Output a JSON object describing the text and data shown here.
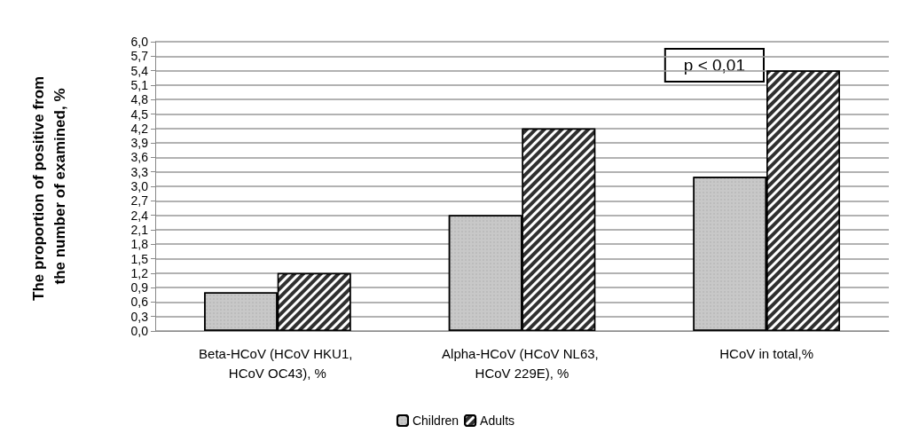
{
  "chart_data": {
    "type": "bar",
    "ylabel": "The proportion of positive from the number of examined, %",
    "categories": [
      "Beta-HCoV (HCoV HKU1, HCoV OC43), %",
      "Alpha-HCoV (HCoV NL63, HCoV 229E), %",
      "HCoV in total,%"
    ],
    "series": [
      {
        "name": "Children",
        "color": "#c8c8c8",
        "values": [
          0.8,
          2.4,
          3.2
        ]
      },
      {
        "name": "Adults",
        "color": "#303030",
        "values": [
          1.2,
          4.2,
          5.4
        ]
      }
    ],
    "ylim": [
      0,
      6
    ],
    "yticks": [
      {
        "value": 0,
        "label": "0,0"
      },
      {
        "value": 0.3,
        "label": "0,3"
      },
      {
        "value": 0.6,
        "label": "0,6"
      },
      {
        "value": 0.9,
        "label": "0,9"
      },
      {
        "value": 1.2,
        "label": "1,2"
      },
      {
        "value": 1.5,
        "label": "1,5"
      },
      {
        "value": 1.8,
        "label": "1,8"
      },
      {
        "value": 2.1,
        "label": "2,1"
      },
      {
        "value": 2.4,
        "label": "2,4"
      },
      {
        "value": 2.7,
        "label": "2,7"
      },
      {
        "value": 3,
        "label": "3,0"
      },
      {
        "value": 3.3,
        "label": "3,3"
      },
      {
        "value": 3.6,
        "label": "3,6"
      },
      {
        "value": 3.9,
        "label": "3,9"
      },
      {
        "value": 4.2,
        "label": "4,2"
      },
      {
        "value": 4.5,
        "label": "4,5"
      },
      {
        "value": 4.8,
        "label": "4,8"
      },
      {
        "value": 5.1,
        "label": "5,1"
      },
      {
        "value": 5.4,
        "label": "5,4"
      },
      {
        "value": 5.7,
        "label": "5,7"
      },
      {
        "value": 6,
        "label": "6,0"
      }
    ],
    "annotations": [
      "p < 0,01"
    ],
    "grid": "y",
    "legend": "bottom"
  }
}
